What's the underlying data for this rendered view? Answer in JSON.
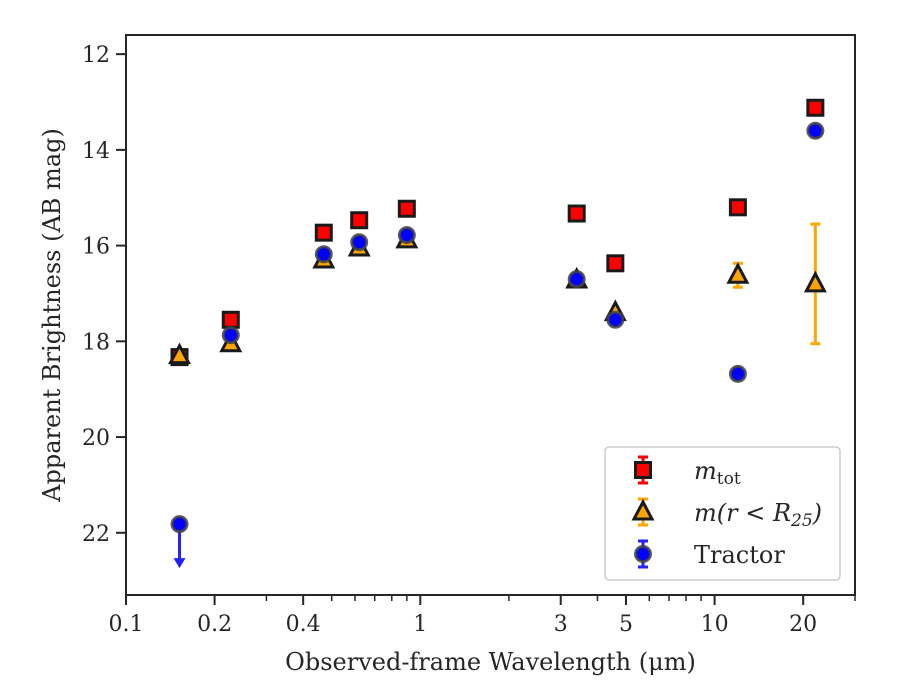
{
  "chart_data": {
    "type": "scatter",
    "xlabel": "Observed-frame Wavelength (μm)",
    "ylabel": "Apparent Brightness (AB mag)",
    "xscale": "log",
    "xlim": [
      0.1,
      30
    ],
    "ylim": [
      23.3,
      11.6
    ],
    "y_inverted": true,
    "grid": false,
    "legend_position": "lower right",
    "x_ticks": [
      {
        "value": 0.1,
        "label": "0.1"
      },
      {
        "value": 0.2,
        "label": "0.2"
      },
      {
        "value": 0.4,
        "label": "0.4"
      },
      {
        "value": 1,
        "label": "1"
      },
      {
        "value": 3,
        "label": "3"
      },
      {
        "value": 5,
        "label": "5"
      },
      {
        "value": 10,
        "label": "10"
      },
      {
        "value": 20,
        "label": "20"
      }
    ],
    "y_ticks": [
      {
        "value": 12,
        "label": "12"
      },
      {
        "value": 14,
        "label": "14"
      },
      {
        "value": 16,
        "label": "16"
      },
      {
        "value": 18,
        "label": "18"
      },
      {
        "value": 20,
        "label": "20"
      },
      {
        "value": 22,
        "label": "22"
      }
    ],
    "series": [
      {
        "name": "m_tot",
        "legend_main": "m",
        "legend_sub": "tot",
        "marker": "square",
        "face_color": "#ff0000",
        "edge_color": "#1a1a1a",
        "errorbar_color": "#ff0000",
        "points": [
          {
            "x": 0.152,
            "y": 18.33
          },
          {
            "x": 0.227,
            "y": 17.55
          },
          {
            "x": 0.47,
            "y": 15.73
          },
          {
            "x": 0.62,
            "y": 15.47
          },
          {
            "x": 0.9,
            "y": 15.23
          },
          {
            "x": 3.4,
            "y": 15.33
          },
          {
            "x": 4.6,
            "y": 16.37
          },
          {
            "x": 12.0,
            "y": 15.2
          },
          {
            "x": 22.0,
            "y": 13.12
          }
        ]
      },
      {
        "name": "m(r < R25)",
        "legend_main": "m(r < R",
        "legend_sub": "25",
        "legend_close": ")",
        "marker": "triangle",
        "face_color": "#ffa500",
        "edge_color": "#1a1a1a",
        "errorbar_color": "#ffa500",
        "points": [
          {
            "x": 0.152,
            "y": 18.3
          },
          {
            "x": 0.227,
            "y": 18.05
          },
          {
            "x": 0.47,
            "y": 16.3
          },
          {
            "x": 0.62,
            "y": 16.05
          },
          {
            "x": 0.9,
            "y": 15.88
          },
          {
            "x": 3.4,
            "y": 16.72
          },
          {
            "x": 4.6,
            "y": 17.4
          },
          {
            "x": 12.0,
            "y": 16.62,
            "err": 0.25
          },
          {
            "x": 22.0,
            "y": 16.8,
            "err_low": 1.25,
            "err_high": 1.25
          }
        ]
      },
      {
        "name": "Tractor",
        "marker": "circle",
        "face_color": "#0000ff",
        "edge_color": "#444444",
        "errorbar_color": "#2222ff",
        "points": [
          {
            "x": 0.152,
            "y": 21.82,
            "upper_limit": true
          },
          {
            "x": 0.227,
            "y": 17.87
          },
          {
            "x": 0.47,
            "y": 16.18
          },
          {
            "x": 0.62,
            "y": 15.93
          },
          {
            "x": 0.9,
            "y": 15.78
          },
          {
            "x": 3.4,
            "y": 16.7
          },
          {
            "x": 4.6,
            "y": 17.55
          },
          {
            "x": 12.0,
            "y": 18.68
          },
          {
            "x": 22.0,
            "y": 13.6
          }
        ]
      }
    ]
  }
}
